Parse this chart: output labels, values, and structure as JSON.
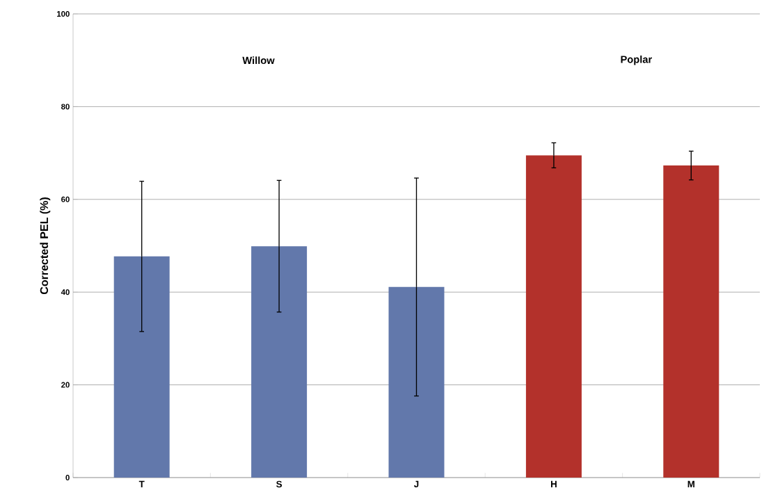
{
  "chart_data": {
    "type": "bar",
    "ylabel": "Corrected PEL (%)",
    "categories": [
      "T",
      "S",
      "J",
      "H",
      "M"
    ],
    "values": [
      47.7,
      49.9,
      41.1,
      69.5,
      67.3
    ],
    "errors": [
      16.2,
      14.2,
      23.5,
      2.7,
      3.1
    ],
    "colors": [
      "#6278ab",
      "#6278ab",
      "#6278ab",
      "#b3312b",
      "#b3312b"
    ],
    "ylim": [
      0,
      100
    ],
    "yticks": [
      0,
      20,
      40,
      60,
      80,
      100
    ],
    "grid": "y",
    "annotations": [
      "Willow",
      "Poplar"
    ]
  }
}
